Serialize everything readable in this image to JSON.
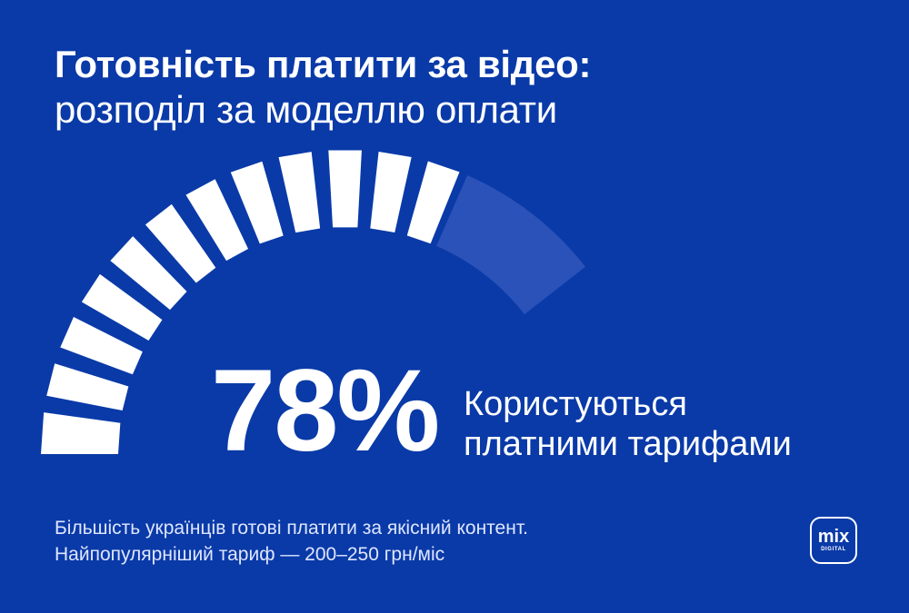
{
  "title": {
    "bold": "Готовність платити за відео:",
    "light": "розподіл за моделлю оплати"
  },
  "gauge": {
    "value_percent": 78,
    "label": "78%",
    "segments_total": 15,
    "fill_color": "#ffffff",
    "track_color": "#2a52b8"
  },
  "caption": {
    "line1": "Користуються",
    "line2": "платними тарифами"
  },
  "footnote": {
    "line1": "Більшість українців готові платити за якісний контент.",
    "line2": "Найпопулярніший тариф — 200–250 грн/міс"
  },
  "logo": {
    "line1": "mix",
    "line2": "DIGITAL"
  },
  "colors": {
    "background": "#0a3aa8",
    "text": "#ffffff"
  }
}
